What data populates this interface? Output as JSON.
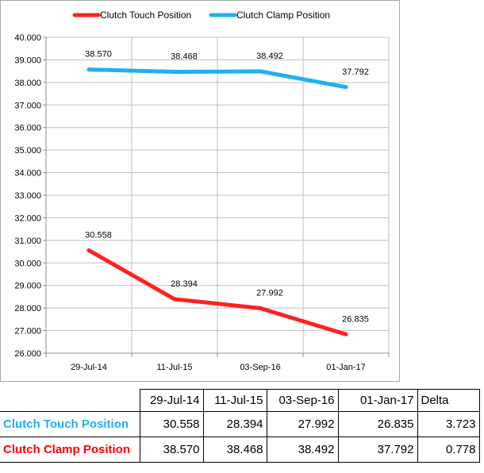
{
  "chart_data": {
    "type": "line",
    "categories": [
      "29-Jul-14",
      "11-Jul-15",
      "03-Sep-16",
      "01-Jan-17"
    ],
    "series": [
      {
        "name": "Clutch Touch Position",
        "color": "#ff2020",
        "values": [
          30.558,
          28.394,
          27.992,
          26.835
        ],
        "labels": [
          "30.558",
          "28.394",
          "27.992",
          "26.835"
        ]
      },
      {
        "name": "Clutch Clamp Position",
        "color": "#1eb1ee",
        "values": [
          38.57,
          38.468,
          38.492,
          37.792
        ],
        "labels": [
          "38.570",
          "38.468",
          "38.492",
          "37.792"
        ]
      }
    ],
    "ylim": [
      26,
      40
    ],
    "y_ticks": [
      "26.000",
      "27.000",
      "28.000",
      "29.000",
      "30.000",
      "31.000",
      "32.000",
      "33.000",
      "34.000",
      "35.000",
      "36.000",
      "37.000",
      "38.000",
      "39.000",
      "40.000"
    ],
    "grid": true,
    "legend_position": "top"
  },
  "table": {
    "headers": [
      "29-Jul-14",
      "11-Jul-15",
      "03-Sep-16",
      "01-Jan-17",
      "Delta"
    ],
    "rows": [
      {
        "label": "Clutch Touch Position",
        "label_color": "#1eb1ee",
        "values": [
          "30.558",
          "28.394",
          "27.992",
          "26.835",
          "3.723"
        ]
      },
      {
        "label": "Clutch Clamp Position",
        "label_color": "#ff0000",
        "values": [
          "38.570",
          "38.468",
          "38.492",
          "37.792",
          "0.778"
        ]
      }
    ]
  }
}
